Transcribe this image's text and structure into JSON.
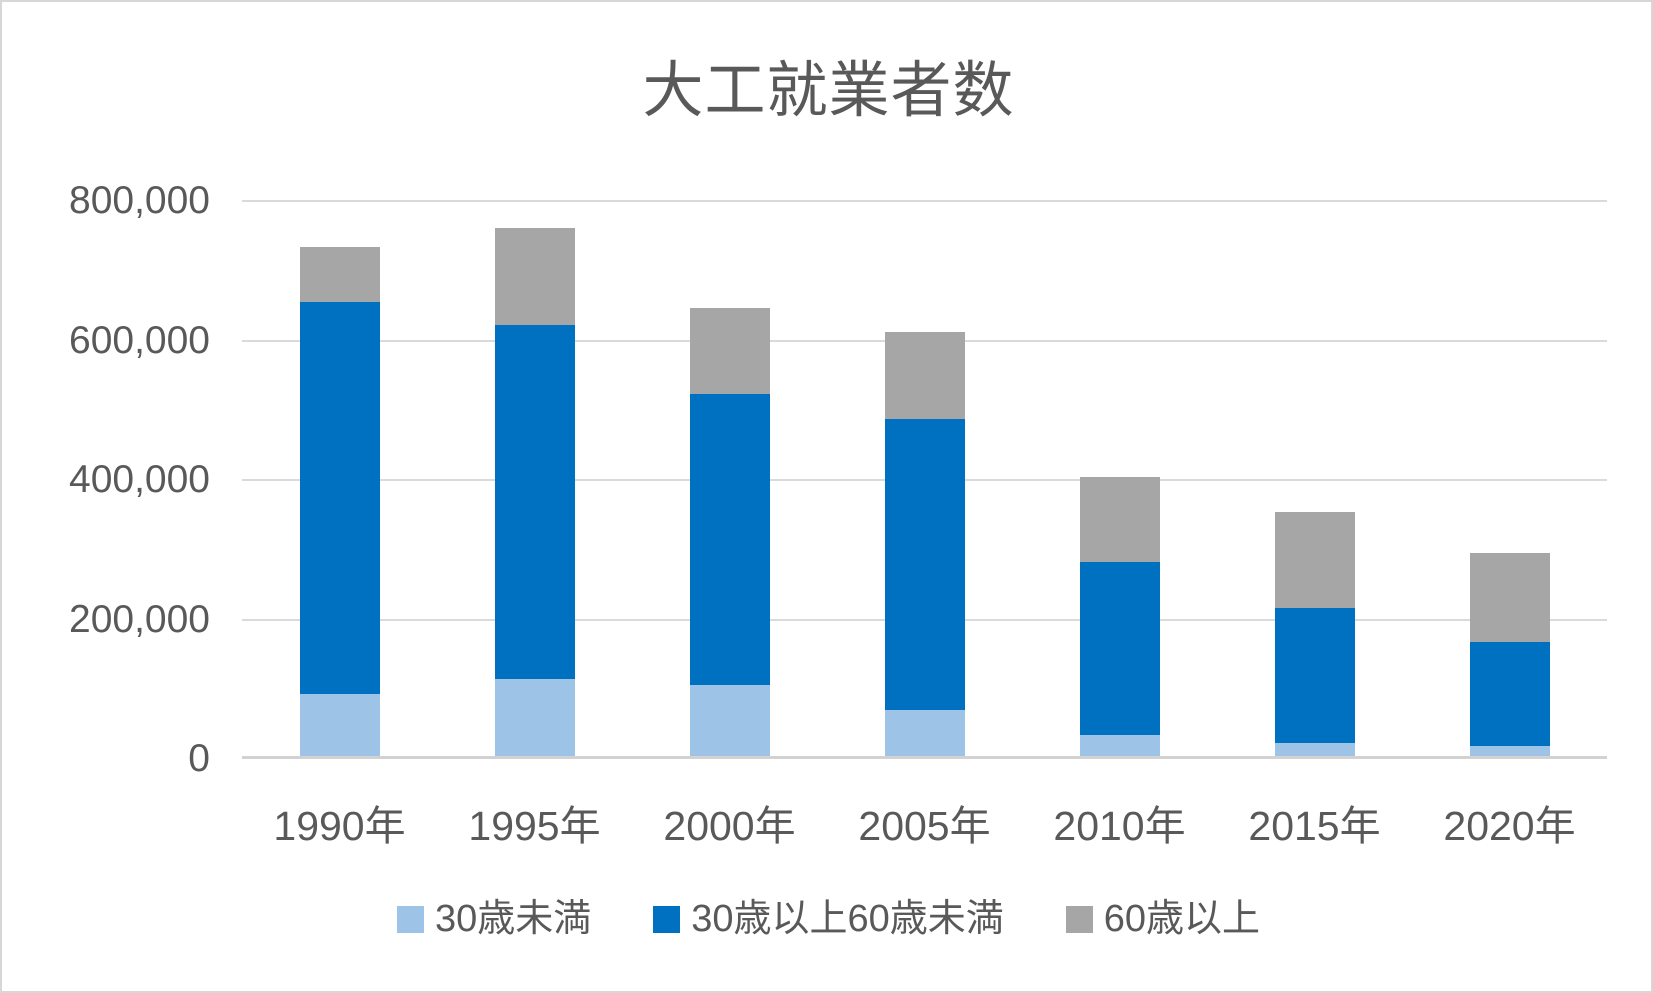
{
  "title": "大工就業者数",
  "colors": {
    "series_under30": "#9DC3E6",
    "series_30to60": "#0070C0",
    "series_over60": "#A6A6A6",
    "text": "#595959",
    "gridline": "#DADADA",
    "axis_line": "#D2D2D2",
    "background": "#FFFFFF",
    "border": "#D7D7D7"
  },
  "chart_data": {
    "type": "bar",
    "stacked": true,
    "title": "大工就業者数",
    "categories": [
      "1990年",
      "1995年",
      "2000年",
      "2005年",
      "2010年",
      "2015年",
      "2020年"
    ],
    "series": [
      {
        "name": "30歳未満",
        "color": "#9DC3E6",
        "values": [
          93000,
          115000,
          106000,
          70000,
          34000,
          23000,
          19000
        ]
      },
      {
        "name": "30歳以上60歳未満",
        "color": "#0070C0",
        "values": [
          562000,
          507000,
          417000,
          418000,
          249000,
          193000,
          149000
        ]
      },
      {
        "name": "60歳以上",
        "color": "#A6A6A6",
        "values": [
          79000,
          139000,
          123000,
          124000,
          121000,
          138000,
          128000
        ]
      }
    ],
    "ylim": [
      0,
      800000
    ],
    "ytick_step": 200000,
    "ytick_labels": [
      "0",
      "200,000",
      "400,000",
      "600,000",
      "800,000"
    ],
    "xlabel": "",
    "ylabel": "",
    "grid": "horizontal",
    "legend_position": "bottom"
  },
  "legend": {
    "items": [
      {
        "label": "30歳未満",
        "color": "#9DC3E6"
      },
      {
        "label": "30歳以上60歳未満",
        "color": "#0070C0"
      },
      {
        "label": "60歳以上",
        "color": "#A6A6A6"
      }
    ]
  }
}
